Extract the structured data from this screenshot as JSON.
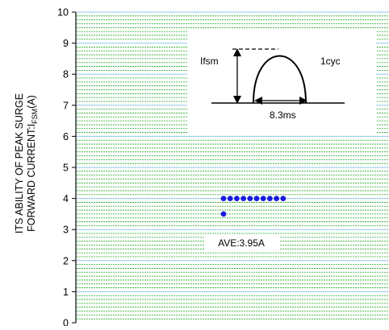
{
  "chart_data": {
    "type": "scatter",
    "title": "",
    "ylabel_line1": "ITS ABILITY OF PEAK SURGE",
    "ylabel_line2_prefix": "FORWARD CURRENT:I",
    "ylabel_line2_sub": "FSM",
    "ylabel_line2_suffix": "(A)",
    "ylim": [
      0,
      10
    ],
    "yticks": [
      "0",
      "1",
      "2",
      "3",
      "4",
      "5",
      "6",
      "7",
      "8",
      "9",
      "10"
    ],
    "grid": "horizontal dashed green, blue major lines",
    "series": [
      {
        "points": [
          {
            "x": 1,
            "y": 3.5
          },
          {
            "x": 1,
            "y": 4.0
          },
          {
            "x": 2,
            "y": 4.0
          },
          {
            "x": 3,
            "y": 4.0
          },
          {
            "x": 4,
            "y": 4.0
          },
          {
            "x": 5,
            "y": 4.0
          },
          {
            "x": 6,
            "y": 4.0
          },
          {
            "x": 7,
            "y": 4.0
          },
          {
            "x": 8,
            "y": 4.0
          },
          {
            "x": 9,
            "y": 4.0
          },
          {
            "x": 10,
            "y": 4.0
          }
        ]
      }
    ],
    "annotation": "AVE:3.95A",
    "inset": {
      "label_left": "Ifsm",
      "label_right": "1cyc",
      "label_bottom": "8.3ms"
    },
    "colors": {
      "point": "#1a1adf",
      "grid_minor": "#22aa22",
      "grid_major": "#8fc8e8",
      "axis": "#000000"
    }
  }
}
